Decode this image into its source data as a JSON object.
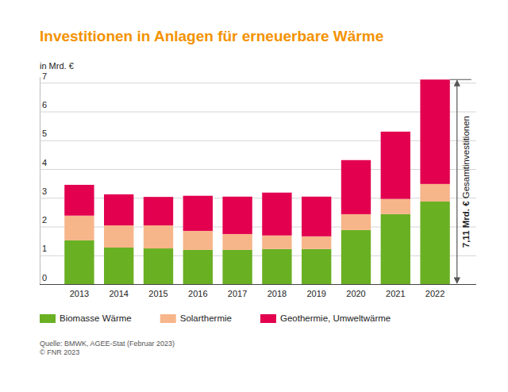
{
  "chart_data": {
    "type": "bar",
    "title": "Investitionen in Anlagen für erneuerbare Wärme",
    "y_label": "in Mrd. €",
    "stacked": true,
    "categories": [
      "2013",
      "2014",
      "2015",
      "2016",
      "2017",
      "2018",
      "2019",
      "2020",
      "2021",
      "2022"
    ],
    "series": [
      {
        "name": "Biomasse Wärme",
        "color": "#6ab023",
        "values": [
          1.52,
          1.27,
          1.24,
          1.19,
          1.19,
          1.22,
          1.22,
          1.88,
          2.43,
          2.87
        ]
      },
      {
        "name": "Solarthermie",
        "color": "#f7b58a",
        "values": [
          0.86,
          0.77,
          0.8,
          0.66,
          0.55,
          0.47,
          0.44,
          0.55,
          0.53,
          0.61
        ]
      },
      {
        "name": "Geothermie, Umweltwärme",
        "color": "#e2004f",
        "values": [
          1.07,
          1.08,
          0.99,
          1.22,
          1.3,
          1.49,
          1.38,
          1.88,
          2.34,
          3.63
        ]
      }
    ],
    "ylim": [
      0,
      7.2
    ],
    "yticks": [
      0,
      1,
      2,
      3,
      4,
      5,
      6,
      7
    ],
    "grid": true,
    "legend": "bottom",
    "annotations": [
      {
        "text": "7,11 Mrd. €"
      },
      {
        "text": "Gesamtinvestitionen"
      }
    ],
    "source": [
      "Quelle: BMWK, AGEE-Stat (Februar 2023)",
      "© FNR 2023"
    ]
  }
}
